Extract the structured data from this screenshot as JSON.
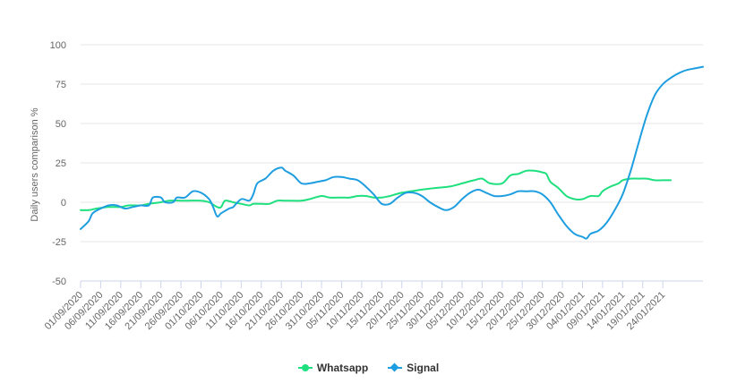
{
  "chart_data": {
    "type": "line",
    "ylabel": "Daily users comparison %",
    "xlabel": "",
    "ylim": [
      -50,
      100
    ],
    "yticks": [
      100,
      75,
      50,
      25,
      0,
      -25,
      -50
    ],
    "grid": "horizontal",
    "legend_position": "bottom-center",
    "xticks": [
      "01/09/2020",
      "06/09/2020",
      "11/09/2020",
      "16/09/2020",
      "21/09/2020",
      "26/09/2020",
      "01/10/2020",
      "06/10/2020",
      "11/10/2020",
      "16/10/2020",
      "21/10/2020",
      "26/10/2020",
      "31/10/2020",
      "05/11/2020",
      "10/11/2020",
      "15/11/2020",
      "20/11/2020",
      "25/11/2020",
      "30/11/2020",
      "05/12/2020",
      "10/12/2020",
      "15/12/2020",
      "20/12/2020",
      "25/12/2020",
      "30/12/2020",
      "04/01/2021",
      "09/01/2021",
      "14/01/2021",
      "19/01/2021",
      "24/01/2021"
    ],
    "series": [
      {
        "name": "Whatsapp",
        "color": "#1ee07e",
        "marker": "circle",
        "points": [
          [
            "01/09/2020",
            -5
          ],
          [
            "03/09/2020",
            -5
          ],
          [
            "05/09/2020",
            -4
          ],
          [
            "08/09/2020",
            -3
          ],
          [
            "11/09/2020",
            -3
          ],
          [
            "13/09/2020",
            -2
          ],
          [
            "16/09/2020",
            -2
          ],
          [
            "18/09/2020",
            -1
          ],
          [
            "21/09/2020",
            0
          ],
          [
            "23/09/2020",
            1
          ],
          [
            "26/09/2020",
            1
          ],
          [
            "28/09/2020",
            1
          ],
          [
            "01/10/2020",
            1
          ],
          [
            "03/10/2020",
            0
          ],
          [
            "05/10/2020",
            -3
          ],
          [
            "06/10/2020",
            -3
          ],
          [
            "07/10/2020",
            1
          ],
          [
            "09/10/2020",
            0
          ],
          [
            "11/10/2020",
            -1
          ],
          [
            "13/10/2020",
            -2
          ],
          [
            "14/10/2020",
            -1
          ],
          [
            "16/10/2020",
            -1
          ],
          [
            "18/10/2020",
            -1
          ],
          [
            "20/10/2020",
            1
          ],
          [
            "22/10/2020",
            1
          ],
          [
            "26/10/2020",
            1
          ],
          [
            "28/10/2020",
            2
          ],
          [
            "31/10/2020",
            4
          ],
          [
            "02/11/2020",
            3
          ],
          [
            "05/11/2020",
            3
          ],
          [
            "07/11/2020",
            3
          ],
          [
            "09/11/2020",
            4
          ],
          [
            "11/11/2020",
            4
          ],
          [
            "13/11/2020",
            3
          ],
          [
            "15/11/2020",
            3
          ],
          [
            "17/11/2020",
            4
          ],
          [
            "20/11/2020",
            6
          ],
          [
            "25/11/2020",
            8
          ],
          [
            "28/11/2020",
            9
          ],
          [
            "02/12/2020",
            10
          ],
          [
            "05/12/2020",
            12
          ],
          [
            "08/12/2020",
            14
          ],
          [
            "10/12/2020",
            15
          ],
          [
            "12/12/2020",
            12
          ],
          [
            "15/12/2020",
            12
          ],
          [
            "17/12/2020",
            17
          ],
          [
            "19/12/2020",
            18
          ],
          [
            "21/12/2020",
            20
          ],
          [
            "23/12/2020",
            20
          ],
          [
            "25/12/2020",
            19
          ],
          [
            "26/12/2020",
            18
          ],
          [
            "27/12/2020",
            13
          ],
          [
            "29/12/2020",
            9
          ],
          [
            "31/12/2020",
            4
          ],
          [
            "02/01/2021",
            2
          ],
          [
            "04/01/2021",
            2
          ],
          [
            "06/01/2021",
            4
          ],
          [
            "08/01/2021",
            4
          ],
          [
            "09/01/2021",
            7
          ],
          [
            "11/01/2021",
            10
          ],
          [
            "13/01/2021",
            12
          ],
          [
            "14/01/2021",
            14
          ],
          [
            "16/01/2021",
            15
          ],
          [
            "18/01/2021",
            15
          ],
          [
            "20/01/2021",
            15
          ],
          [
            "22/01/2021",
            14
          ],
          [
            "24/01/2021",
            14
          ],
          [
            "26/01/2021",
            14
          ]
        ]
      },
      {
        "name": "Signal",
        "color": "#1e9ee0",
        "marker": "diamond",
        "points": [
          [
            "01/09/2020",
            -17
          ],
          [
            "03/09/2020",
            -12
          ],
          [
            "04/09/2020",
            -7
          ],
          [
            "06/09/2020",
            -4
          ],
          [
            "08/09/2020",
            -2
          ],
          [
            "10/09/2020",
            -2
          ],
          [
            "12/09/2020",
            -4
          ],
          [
            "14/09/2020",
            -3
          ],
          [
            "16/09/2020",
            -2
          ],
          [
            "18/09/2020",
            -2
          ],
          [
            "19/09/2020",
            3
          ],
          [
            "21/09/2020",
            3
          ],
          [
            "22/09/2020",
            0
          ],
          [
            "24/09/2020",
            0
          ],
          [
            "25/09/2020",
            3
          ],
          [
            "27/09/2020",
            3
          ],
          [
            "29/09/2020",
            7
          ],
          [
            "01/10/2020",
            6
          ],
          [
            "03/10/2020",
            2
          ],
          [
            "04/10/2020",
            -3
          ],
          [
            "05/10/2020",
            -9
          ],
          [
            "06/10/2020",
            -7
          ],
          [
            "08/10/2020",
            -4
          ],
          [
            "09/10/2020",
            -3
          ],
          [
            "11/10/2020",
            2
          ],
          [
            "13/10/2020",
            1
          ],
          [
            "14/10/2020",
            5
          ],
          [
            "15/10/2020",
            12
          ],
          [
            "17/10/2020",
            15
          ],
          [
            "19/10/2020",
            20
          ],
          [
            "21/10/2020",
            22
          ],
          [
            "22/10/2020",
            20
          ],
          [
            "24/10/2020",
            17
          ],
          [
            "26/10/2020",
            12
          ],
          [
            "28/10/2020",
            12
          ],
          [
            "30/10/2020",
            13
          ],
          [
            "01/11/2020",
            14
          ],
          [
            "03/11/2020",
            16
          ],
          [
            "05/11/2020",
            16
          ],
          [
            "07/11/2020",
            15
          ],
          [
            "09/11/2020",
            14
          ],
          [
            "11/11/2020",
            10
          ],
          [
            "13/11/2020",
            5
          ],
          [
            "15/11/2020",
            -1
          ],
          [
            "17/11/2020",
            -1
          ],
          [
            "19/11/2020",
            3
          ],
          [
            "21/11/2020",
            6
          ],
          [
            "23/11/2020",
            6
          ],
          [
            "25/11/2020",
            4
          ],
          [
            "27/11/2020",
            0
          ],
          [
            "29/11/2020",
            -3
          ],
          [
            "01/12/2020",
            -5
          ],
          [
            "03/12/2020",
            -3
          ],
          [
            "05/12/2020",
            2
          ],
          [
            "07/12/2020",
            6
          ],
          [
            "09/12/2020",
            8
          ],
          [
            "11/12/2020",
            6
          ],
          [
            "13/12/2020",
            4
          ],
          [
            "15/12/2020",
            4
          ],
          [
            "17/12/2020",
            5
          ],
          [
            "19/12/2020",
            7
          ],
          [
            "21/12/2020",
            7
          ],
          [
            "23/12/2020",
            7
          ],
          [
            "25/12/2020",
            5
          ],
          [
            "27/12/2020",
            0
          ],
          [
            "29/12/2020",
            -8
          ],
          [
            "31/12/2020",
            -15
          ],
          [
            "02/01/2021",
            -20
          ],
          [
            "04/01/2021",
            -22
          ],
          [
            "05/01/2021",
            -23
          ],
          [
            "06/01/2021",
            -20
          ],
          [
            "08/01/2021",
            -18
          ],
          [
            "10/01/2021",
            -13
          ],
          [
            "12/01/2021",
            -5
          ],
          [
            "14/01/2021",
            5
          ],
          [
            "16/01/2021",
            20
          ],
          [
            "18/01/2021",
            38
          ],
          [
            "20/01/2021",
            55
          ],
          [
            "22/01/2021",
            68
          ],
          [
            "24/01/2021",
            75
          ],
          [
            "26/01/2021",
            79
          ],
          [
            "28/01/2021",
            82
          ],
          [
            "30/01/2021",
            84
          ],
          [
            "01/02/2021",
            85
          ],
          [
            "03/02/2021",
            86
          ]
        ]
      }
    ]
  }
}
